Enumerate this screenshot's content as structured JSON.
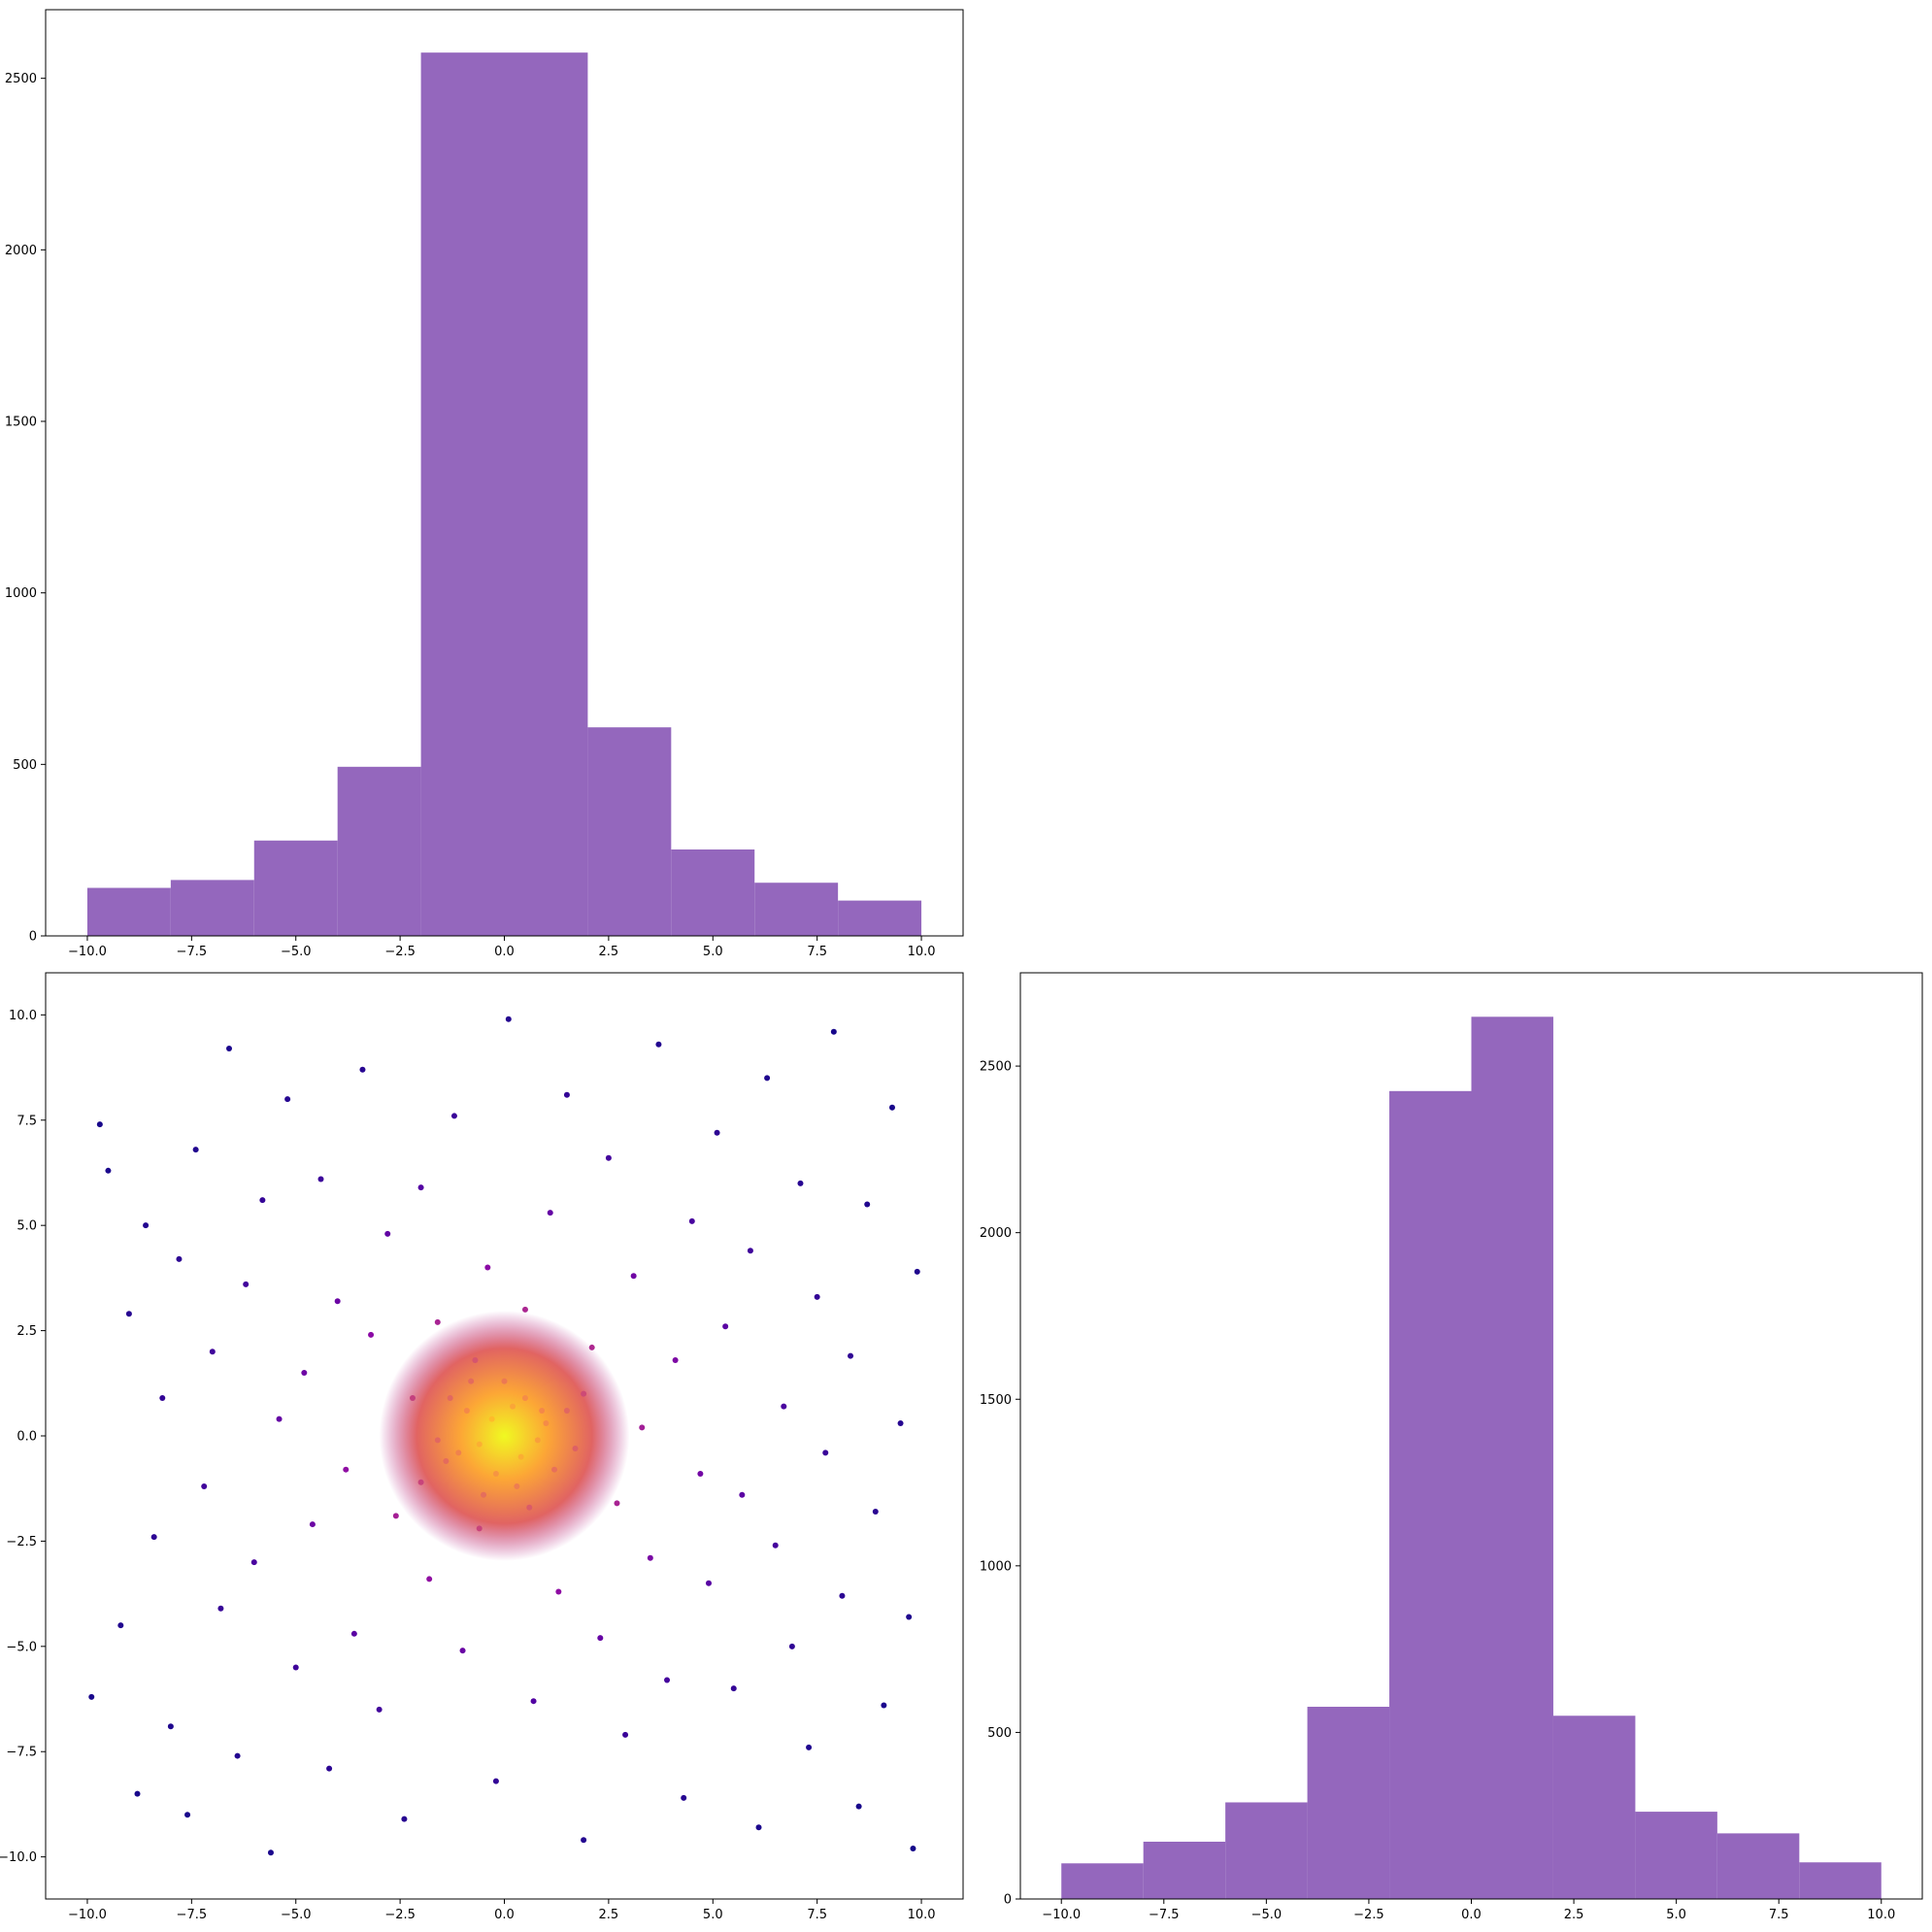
{
  "colors": {
    "bar_fill": "#9467bd",
    "scatter_colormap": "plasma",
    "axes_edge": "#000000",
    "background": "#ffffff"
  },
  "chart_data": [
    {
      "id": "top-histogram",
      "type": "bar",
      "title": "",
      "xlabel": "",
      "ylabel": "",
      "bin_edges": [
        -10,
        -8,
        -6,
        -4,
        -2,
        2,
        4,
        6,
        8,
        10
      ],
      "values": [
        140,
        163,
        278,
        493,
        2575,
        608,
        252,
        155,
        103
      ],
      "xlim": [
        -11.0,
        11.0
      ],
      "ylim": [
        0,
        2700
      ],
      "xticks": [
        -10.0,
        -7.5,
        -5.0,
        -2.5,
        0.0,
        2.5,
        5.0,
        7.5,
        10.0
      ],
      "xtick_labels": [
        "−10.0",
        "−7.5",
        "−5.0",
        "−2.5",
        "0.0",
        "2.5",
        "5.0",
        "7.5",
        "10.0"
      ],
      "yticks": [
        0,
        500,
        1000,
        1500,
        2000,
        2500
      ],
      "ytick_labels": [
        "0",
        "500",
        "1000",
        "1500",
        "2000",
        "2500"
      ],
      "grid": false
    },
    {
      "id": "scatter",
      "type": "scatter",
      "title": "",
      "xlabel": "",
      "ylabel": "",
      "xlim": [
        -11.0,
        11.0
      ],
      "ylim": [
        -11.0,
        11.0
      ],
      "xticks": [
        -10.0,
        -7.5,
        -5.0,
        -2.5,
        0.0,
        2.5,
        5.0,
        7.5,
        10.0
      ],
      "xtick_labels": [
        "−10.0",
        "−7.5",
        "−5.0",
        "−2.5",
        "0.0",
        "2.5",
        "5.0",
        "7.5",
        "10.0"
      ],
      "yticks": [
        -10.0,
        -7.5,
        -5.0,
        -2.5,
        0.0,
        2.5,
        5.0,
        7.5,
        10.0
      ],
      "ytick_labels": [
        "−10.0",
        "−7.5",
        "−5.0",
        "−2.5",
        "0.0",
        "2.5",
        "5.0",
        "7.5",
        "10.0"
      ],
      "colormap": "plasma",
      "color_encoding": "point density, dense center yellow, sparse edges dark purple",
      "grid": false,
      "points": [
        [
          -9.9,
          -6.2
        ],
        [
          -9.7,
          7.4
        ],
        [
          -9.5,
          6.3
        ],
        [
          -9.2,
          -4.5
        ],
        [
          -9.0,
          2.9
        ],
        [
          -8.8,
          -8.5
        ],
        [
          -8.6,
          5.0
        ],
        [
          -8.4,
          -2.4
        ],
        [
          -8.2,
          0.9
        ],
        [
          -8.0,
          -6.9
        ],
        [
          -7.8,
          4.2
        ],
        [
          -7.6,
          -9.0
        ],
        [
          -7.4,
          6.8
        ],
        [
          -7.2,
          -1.2
        ],
        [
          -7.0,
          2.0
        ],
        [
          -6.8,
          -4.1
        ],
        [
          -6.6,
          9.2
        ],
        [
          -6.4,
          -7.6
        ],
        [
          -6.2,
          3.6
        ],
        [
          -6.0,
          -3.0
        ],
        [
          -5.8,
          5.6
        ],
        [
          -5.6,
          -9.9
        ],
        [
          -5.4,
          0.4
        ],
        [
          -5.2,
          8.0
        ],
        [
          -5.0,
          -5.5
        ],
        [
          -4.8,
          1.5
        ],
        [
          -4.6,
          -2.1
        ],
        [
          -4.4,
          6.1
        ],
        [
          -4.2,
          -7.9
        ],
        [
          -4.0,
          3.2
        ],
        [
          -3.8,
          -0.8
        ],
        [
          -3.6,
          -4.7
        ],
        [
          -3.4,
          8.7
        ],
        [
          -3.2,
          2.4
        ],
        [
          -3.0,
          -6.5
        ],
        [
          -2.8,
          4.8
        ],
        [
          -2.6,
          -1.9
        ],
        [
          -2.4,
          -9.1
        ],
        [
          -2.2,
          0.9
        ],
        [
          -2.0,
          5.9
        ],
        [
          -1.8,
          -3.4
        ],
        [
          -1.6,
          2.7
        ],
        [
          -1.4,
          -0.6
        ],
        [
          -1.2,
          7.6
        ],
        [
          -1.0,
          -5.1
        ],
        [
          -0.8,
          1.3
        ],
        [
          -0.6,
          -2.2
        ],
        [
          -0.4,
          4.0
        ],
        [
          -0.2,
          -8.2
        ],
        [
          0.1,
          9.9
        ],
        [
          0.3,
          -1.2
        ],
        [
          0.5,
          3.0
        ],
        [
          0.7,
          -6.3
        ],
        [
          0.9,
          0.6
        ],
        [
          1.1,
          5.3
        ],
        [
          1.3,
          -3.7
        ],
        [
          1.5,
          8.1
        ],
        [
          1.7,
          -0.3
        ],
        [
          1.9,
          -9.6
        ],
        [
          2.1,
          2.1
        ],
        [
          2.3,
          -4.8
        ],
        [
          2.5,
          6.6
        ],
        [
          2.7,
          -1.6
        ],
        [
          2.9,
          -7.1
        ],
        [
          3.1,
          3.8
        ],
        [
          3.3,
          0.2
        ],
        [
          3.5,
          -2.9
        ],
        [
          3.7,
          9.3
        ],
        [
          3.9,
          -5.8
        ],
        [
          4.1,
          1.8
        ],
        [
          4.3,
          -8.6
        ],
        [
          4.5,
          5.1
        ],
        [
          4.7,
          -0.9
        ],
        [
          4.9,
          -3.5
        ],
        [
          5.1,
          7.2
        ],
        [
          5.3,
          2.6
        ],
        [
          5.5,
          -6.0
        ],
        [
          5.7,
          -1.4
        ],
        [
          5.9,
          4.4
        ],
        [
          6.1,
          -9.3
        ],
        [
          6.3,
          8.5
        ],
        [
          6.5,
          -2.6
        ],
        [
          6.7,
          0.7
        ],
        [
          6.9,
          -5.0
        ],
        [
          7.1,
          6.0
        ],
        [
          7.3,
          -7.4
        ],
        [
          7.5,
          3.3
        ],
        [
          7.7,
          -0.4
        ],
        [
          7.9,
          9.6
        ],
        [
          8.1,
          -3.8
        ],
        [
          8.3,
          1.9
        ],
        [
          8.5,
          -8.8
        ],
        [
          8.7,
          5.5
        ],
        [
          8.9,
          -1.8
        ],
        [
          9.1,
          -6.4
        ],
        [
          9.3,
          7.8
        ],
        [
          9.5,
          0.3
        ],
        [
          9.7,
          -4.3
        ],
        [
          9.9,
          3.9
        ],
        [
          9.8,
          -9.8
        ],
        [
          -0.3,
          0.4
        ],
        [
          0.4,
          -0.5
        ],
        [
          -0.6,
          -0.2
        ],
        [
          0.2,
          0.7
        ],
        [
          0.8,
          -0.1
        ],
        [
          -0.9,
          0.6
        ],
        [
          0.5,
          0.9
        ],
        [
          -0.2,
          -0.9
        ],
        [
          1.0,
          0.3
        ],
        [
          -1.1,
          -0.4
        ],
        [
          0.0,
          1.3
        ],
        [
          1.2,
          -0.8
        ],
        [
          -1.3,
          0.9
        ],
        [
          -0.5,
          -1.4
        ],
        [
          1.5,
          0.6
        ],
        [
          -1.6,
          -0.1
        ],
        [
          0.6,
          -1.7
        ],
        [
          -0.7,
          1.8
        ],
        [
          1.9,
          1.0
        ],
        [
          -2.0,
          -1.1
        ]
      ]
    },
    {
      "id": "bottom-right-histogram",
      "type": "bar",
      "title": "",
      "xlabel": "",
      "ylabel": "",
      "bin_edges": [
        -10,
        -8,
        -6,
        -4,
        -2,
        0,
        2,
        4,
        6,
        8,
        10
      ],
      "values": [
        107,
        172,
        290,
        577,
        2425,
        2648,
        550,
        262,
        197,
        110
      ],
      "xlim": [
        -11.0,
        11.0
      ],
      "ylim": [
        0,
        2780
      ],
      "xticks": [
        -10.0,
        -7.5,
        -5.0,
        -2.5,
        0.0,
        2.5,
        5.0,
        7.5,
        10.0
      ],
      "xtick_labels": [
        "−10.0",
        "−7.5",
        "−5.0",
        "−2.5",
        "0.0",
        "2.5",
        "5.0",
        "7.5",
        "10.0"
      ],
      "yticks": [
        0,
        500,
        1000,
        1500,
        2000,
        2500
      ],
      "ytick_labels": [
        "0",
        "500",
        "1000",
        "1500",
        "2000",
        "2500"
      ],
      "grid": false
    }
  ]
}
